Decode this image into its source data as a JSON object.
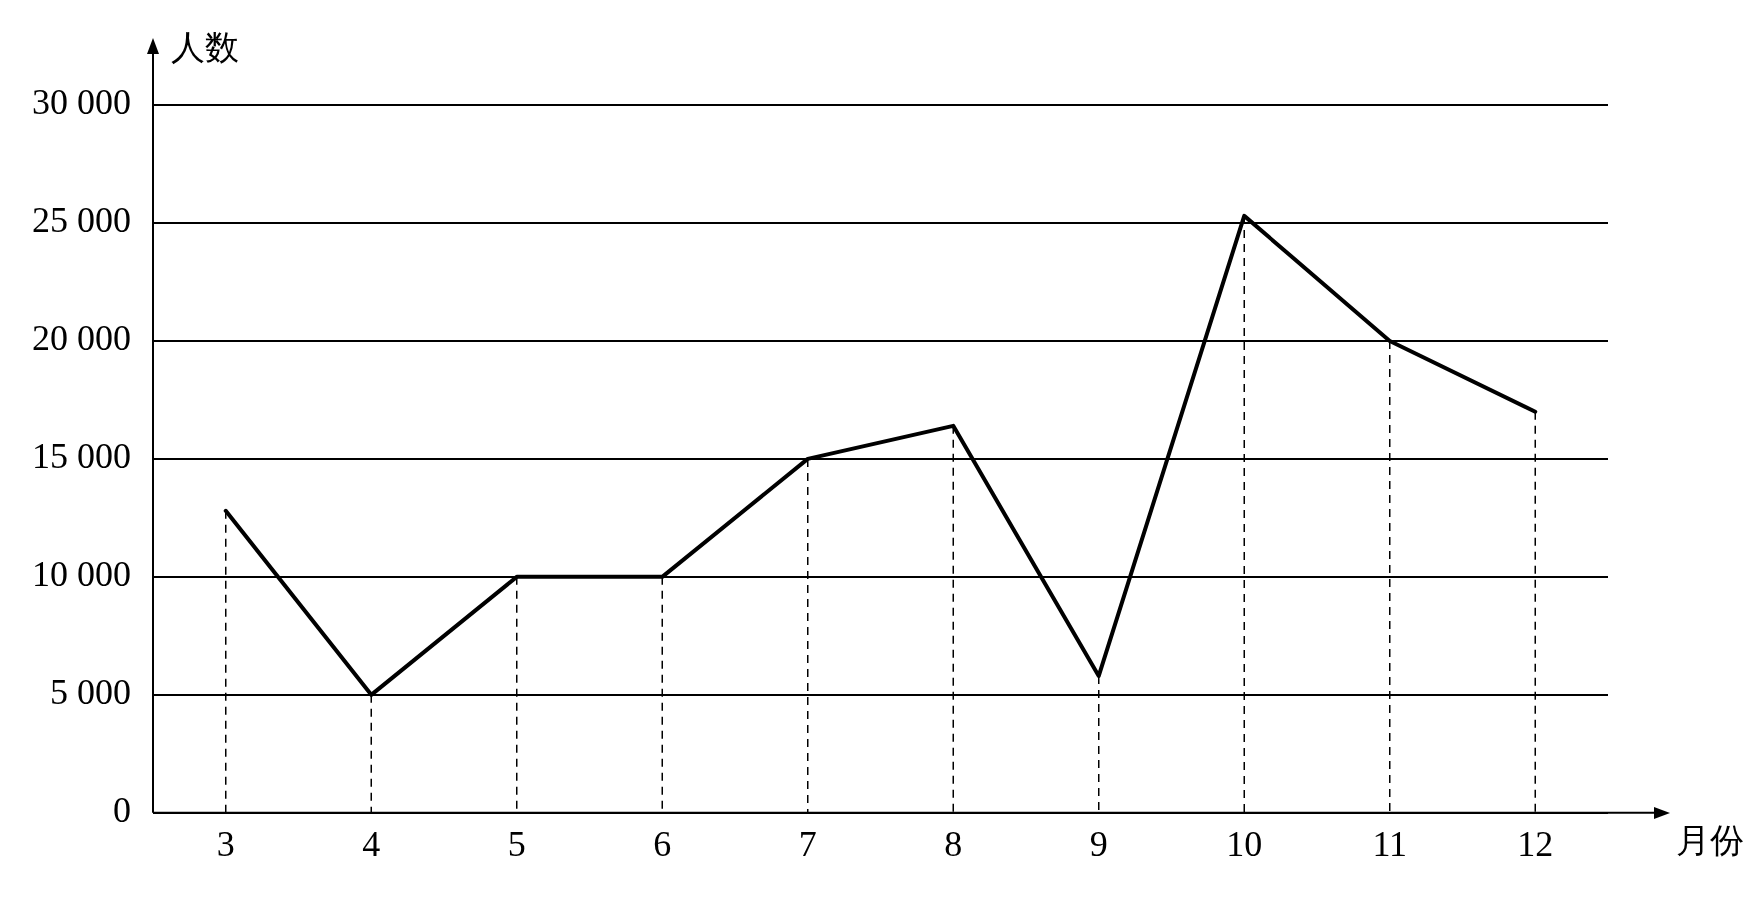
{
  "chart_data": {
    "type": "line",
    "categories": [
      "3",
      "4",
      "5",
      "6",
      "7",
      "8",
      "9",
      "10",
      "11",
      "12"
    ],
    "series": [
      {
        "color": "#000000",
        "values": [
          12800,
          5000,
          10000,
          10000,
          15000,
          16400,
          5800,
          25300,
          20000,
          17000
        ],
        "errors": [
          [
            0,
            12800
          ],
          [
            0,
            5000
          ],
          [
            0,
            10000
          ],
          [
            0,
            10000
          ],
          [
            0,
            15000
          ],
          [
            0,
            16400
          ],
          [
            0,
            5800
          ],
          [
            0,
            25300
          ],
          [
            0,
            20000
          ],
          [
            0,
            17000
          ]
        ]
      }
    ],
    "xlabel": "月份",
    "ylabel": "人数",
    "ylim": [
      0,
      30000
    ],
    "yticks": [
      {
        "value": 0,
        "label": "0"
      },
      {
        "value": 5000,
        "label": "5 000"
      },
      {
        "value": 10000,
        "label": "10 000"
      },
      {
        "value": 15000,
        "label": "15 000"
      },
      {
        "value": 20000,
        "label": "20 000"
      },
      {
        "value": 25000,
        "label": "25 000"
      },
      {
        "value": 30000,
        "label": "30 000"
      }
    ],
    "grid": "y",
    "legend": false,
    "marker": "none",
    "line_style": "solid"
  }
}
